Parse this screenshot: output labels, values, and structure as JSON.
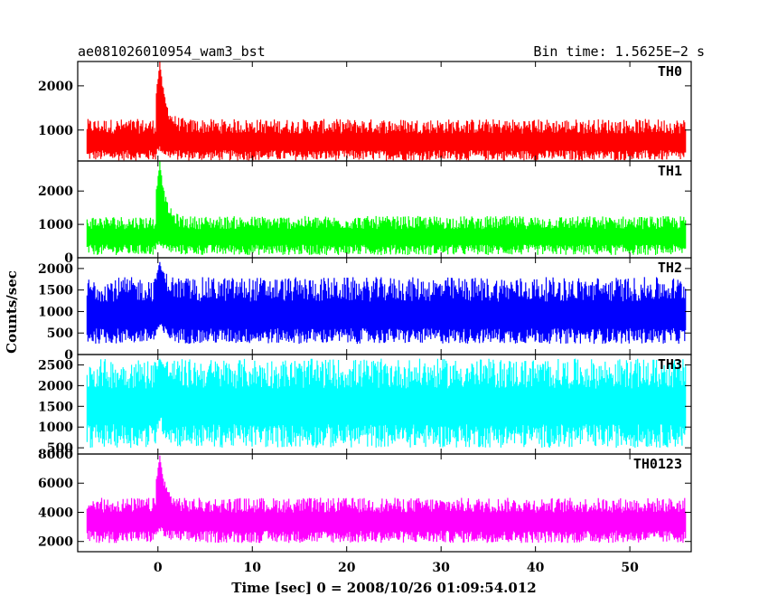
{
  "header": {
    "title": "ae081026010954_wam3_bst",
    "bin_time": "Bin time: 1.5625E−2 s"
  },
  "chart_data": {
    "type": "line",
    "xlabel": "Time [sec] 0 = 2008/10/26 01:09:54.012",
    "ylabel": "Counts/sec",
    "xlim": [
      -8.5,
      56.5
    ],
    "xticks": [
      0,
      10,
      20,
      30,
      40,
      50
    ],
    "data_range": [
      -7.5,
      55.9
    ],
    "panels": [
      {
        "name": "TH0",
        "color": "#ff0000",
        "ylim": [
          300,
          2550
        ],
        "yticks": [
          1000,
          2000
        ],
        "baseline_low": 310,
        "baseline_mean": 700,
        "baseline_high": 1250,
        "peak_time": 0.2,
        "peak_value": 2550
      },
      {
        "name": "TH1",
        "color": "#00ff00",
        "ylim": [
          0,
          2900
        ],
        "yticks": [
          0,
          1000,
          2000
        ],
        "baseline_low": 80,
        "baseline_mean": 600,
        "baseline_high": 1250,
        "peak_time": 0.2,
        "peak_value": 2900
      },
      {
        "name": "TH2",
        "color": "#0000ff",
        "ylim": [
          0,
          2250
        ],
        "yticks": [
          0,
          500,
          1000,
          1500,
          2000
        ],
        "baseline_low": 250,
        "baseline_mean": 850,
        "baseline_high": 1800,
        "peak_time": 0.2,
        "peak_value": 2150
      },
      {
        "name": "TH3",
        "color": "#00ffff",
        "ylim": [
          350,
          2750
        ],
        "yticks": [
          500,
          1000,
          1500,
          2000,
          2500
        ],
        "baseline_low": 500,
        "baseline_mean": 1450,
        "baseline_high": 2650,
        "peak_time": 0.2,
        "peak_value": 2650
      },
      {
        "name": "TH0123",
        "color": "#ff00ff",
        "ylim": [
          1300,
          8000
        ],
        "yticks": [
          2000,
          4000,
          6000,
          8000
        ],
        "baseline_low": 1900,
        "baseline_mean": 3300,
        "baseline_high": 5000,
        "peak_time": 0.2,
        "peak_value": 7900
      }
    ]
  }
}
